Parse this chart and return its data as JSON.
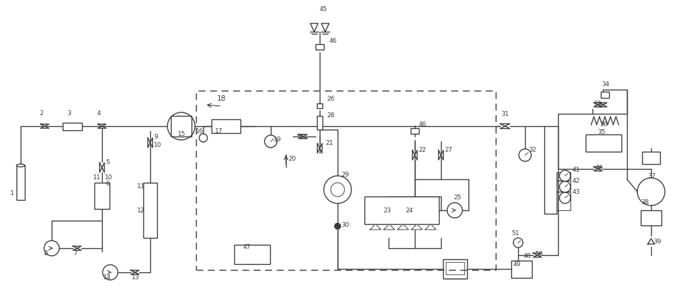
{
  "bg_color": "#ffffff",
  "line_color": "#3a3a3a",
  "lw": 1.0
}
